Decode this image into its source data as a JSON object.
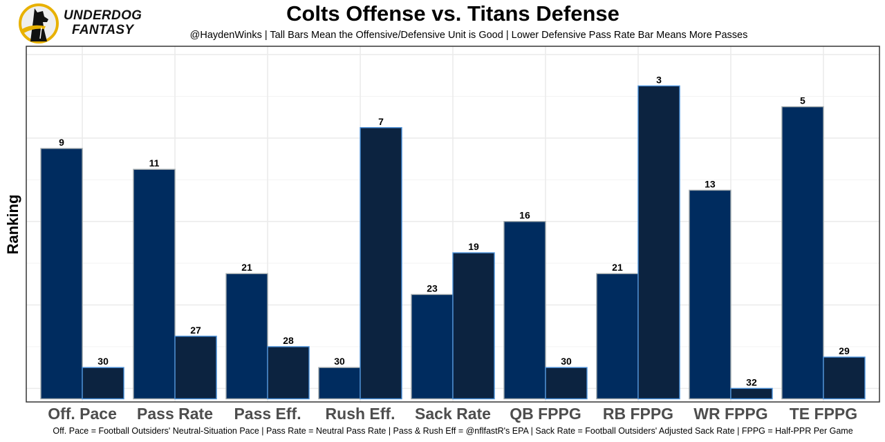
{
  "branding": {
    "logo_line1": "UNDERDOG",
    "logo_line2": "FANTASY",
    "logo_colors": {
      "ring": "#e8b100",
      "dog": "#111111"
    }
  },
  "chart_data": {
    "type": "bar",
    "title": "Colts Offense vs. Titans Defense",
    "subtitle": "@HaydenWinks | Tall Bars Mean the Offensive/Defensive Unit is Good | Lower Defensive Pass Rate Bar Means More Passes",
    "xlabel": "",
    "ylabel": "Ranking",
    "caption": "Off. Pace = Football Outsiders' Neutral-Situation Pace | Pass Rate = Neutral Pass Rate | Pass & Rush Eff = @nflfastR's EPA | Sack Rate = Football Outsiders' Adjusted Sack Rate | FPPG = Half-PPR Per Game",
    "categories": [
      "Off. Pace",
      "Pass Rate",
      "Pass Eff.",
      "Rush Eff.",
      "Sack Rate",
      "QB FPPG",
      "RB FPPG",
      "WR FPPG",
      "TE FPPG"
    ],
    "series": [
      {
        "name": "Colts Offense",
        "values": [
          9,
          11,
          21,
          30,
          23,
          16,
          21,
          13,
          5
        ],
        "fill": "#002c5f",
        "outline": "#a2aaad"
      },
      {
        "name": "Titans Defense",
        "values": [
          30,
          27,
          28,
          7,
          19,
          30,
          3,
          32,
          29
        ],
        "fill": "#0c2340",
        "outline": "#4b92db"
      }
    ],
    "bar_height_rule": "bar height = 33 - ranking (rank 1 = tallest)",
    "ylim": [
      -0.3,
      33.8
    ],
    "y_ticks_visible": false,
    "grid": true,
    "legend": "none"
  }
}
